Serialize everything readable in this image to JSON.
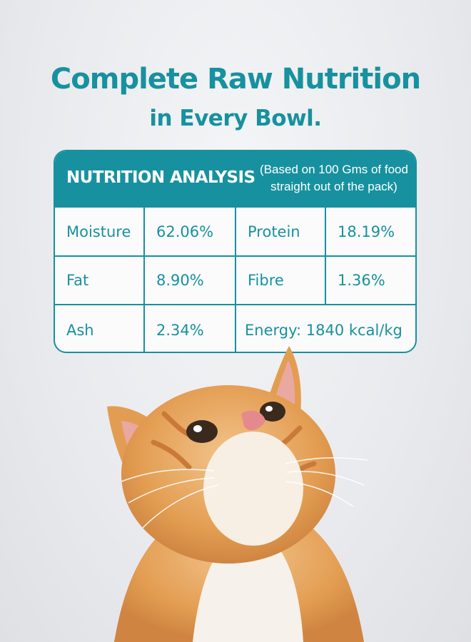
{
  "headline": {
    "title": "Complete Raw Nutrition",
    "subtitle": "in Every Bowl."
  },
  "nutrition": {
    "heading": "NUTRITION ANALYSIS",
    "note_line1": "(Based on 100 Gms of food",
    "note_line2": "straight out of the pack)",
    "rows": [
      {
        "label1": "Moisture",
        "value1": "62.06%",
        "label2": "Protein",
        "value2": "18.19%"
      },
      {
        "label1": "Fat",
        "value1": "8.90%",
        "label2": "Fibre",
        "value2": "1.36%"
      },
      {
        "label1": "Ash",
        "value1": "2.34%",
        "energy": "Energy: 1840 kcal/kg"
      }
    ]
  },
  "colors": {
    "accent": "#17919f",
    "cat_orange": "#e7a45a",
    "cat_white": "#f6f1ea"
  },
  "image": {
    "subject": "orange-tabby-cat-looking-up"
  }
}
